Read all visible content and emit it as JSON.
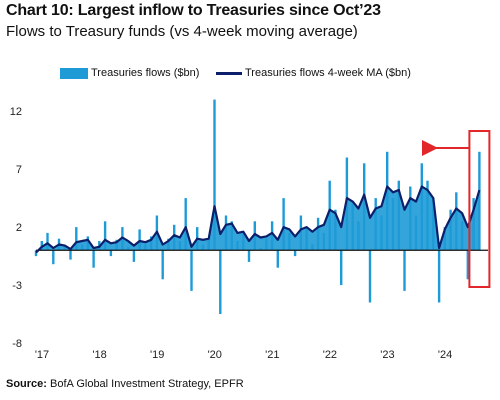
{
  "chart_data": {
    "type": "bar",
    "title": "Chart 10: Largest inflow to Treasuries since Oct’23",
    "subtitle": "Flows to Treasury funds (vs 4-week moving average)",
    "source_label": "Source:",
    "source_text": " BofA Global Investment Strategy, EPFR",
    "xlabel": "",
    "ylabel": "",
    "ylim": [
      -8,
      14
    ],
    "xlim": [
      2017.0,
      2024.85
    ],
    "yticks": [
      12,
      7,
      2,
      -3,
      -8
    ],
    "xticks": [
      {
        "label": "'17",
        "value": 2017.0
      },
      {
        "label": "'18",
        "value": 2018.0
      },
      {
        "label": "'19",
        "value": 2019.0
      },
      {
        "label": "'20",
        "value": 2020.0
      },
      {
        "label": "'21",
        "value": 2021.0
      },
      {
        "label": "'22",
        "value": 2022.0
      },
      {
        "label": "'23",
        "value": 2023.0
      },
      {
        "label": "'24",
        "value": 2024.0
      }
    ],
    "grid": false,
    "legend_placement": "top-left",
    "colors": {
      "bars": "#1e9bd7",
      "ma_line": "#0b1f6b",
      "highlight": "#e3262a"
    },
    "series": [
      {
        "name": "Treasuries flows ($bn)",
        "kind": "bar",
        "x": [
          2017.0,
          2017.1,
          2017.2,
          2017.3,
          2017.4,
          2017.5,
          2017.6,
          2017.7,
          2017.8,
          2017.9,
          2018.0,
          2018.1,
          2018.2,
          2018.3,
          2018.4,
          2018.5,
          2018.6,
          2018.7,
          2018.8,
          2018.9,
          2019.0,
          2019.1,
          2019.2,
          2019.3,
          2019.4,
          2019.5,
          2019.6,
          2019.7,
          2019.8,
          2019.9,
          2020.0,
          2020.1,
          2020.2,
          2020.3,
          2020.4,
          2020.5,
          2020.6,
          2020.7,
          2020.8,
          2020.9,
          2021.0,
          2021.1,
          2021.2,
          2021.3,
          2021.4,
          2021.5,
          2021.6,
          2021.7,
          2021.8,
          2021.9,
          2022.0,
          2022.1,
          2022.2,
          2022.3,
          2022.4,
          2022.5,
          2022.6,
          2022.7,
          2022.8,
          2022.9,
          2023.0,
          2023.1,
          2023.2,
          2023.3,
          2023.4,
          2023.5,
          2023.6,
          2023.7,
          2023.8,
          2023.9,
          2024.0,
          2024.1,
          2024.2,
          2024.3,
          2024.4,
          2024.5,
          2024.6,
          2024.7
        ],
        "values": [
          -0.5,
          0.8,
          1.5,
          -1.2,
          1.0,
          0.3,
          -0.8,
          2.0,
          0.5,
          1.2,
          -1.5,
          0.8,
          2.5,
          -0.5,
          0.9,
          2.0,
          0.3,
          -1.0,
          1.8,
          0.5,
          1.2,
          3.0,
          -2.5,
          1.0,
          2.2,
          0.8,
          4.5,
          -3.5,
          2.0,
          0.5,
          1.0,
          13.0,
          -5.5,
          3.0,
          2.5,
          0.8,
          1.5,
          -1.0,
          2.5,
          0.2,
          1.0,
          2.5,
          -1.5,
          4.5,
          1.5,
          -0.5,
          3.0,
          2.0,
          0.5,
          2.8,
          1.5,
          6.0,
          3.5,
          -3.0,
          8.0,
          4.0,
          2.5,
          7.5,
          -4.5,
          4.5,
          3.0,
          8.5,
          4.5,
          6.0,
          -3.5,
          5.5,
          3.0,
          7.5,
          6.0,
          4.5,
          -4.5,
          2.0,
          3.5,
          5.0,
          2.5,
          -2.5,
          4.5,
          8.5
        ]
      },
      {
        "name": "Treasuries flows 4-week MA ($bn)",
        "kind": "line",
        "x": [
          2017.0,
          2017.1,
          2017.2,
          2017.3,
          2017.4,
          2017.5,
          2017.6,
          2017.7,
          2017.8,
          2017.9,
          2018.0,
          2018.1,
          2018.2,
          2018.3,
          2018.4,
          2018.5,
          2018.6,
          2018.7,
          2018.8,
          2018.9,
          2019.0,
          2019.1,
          2019.2,
          2019.3,
          2019.4,
          2019.5,
          2019.6,
          2019.7,
          2019.8,
          2019.9,
          2020.0,
          2020.1,
          2020.2,
          2020.3,
          2020.4,
          2020.5,
          2020.6,
          2020.7,
          2020.8,
          2020.9,
          2021.0,
          2021.1,
          2021.2,
          2021.3,
          2021.4,
          2021.5,
          2021.6,
          2021.7,
          2021.8,
          2021.9,
          2022.0,
          2022.1,
          2022.2,
          2022.3,
          2022.4,
          2022.5,
          2022.6,
          2022.7,
          2022.8,
          2022.9,
          2023.0,
          2023.1,
          2023.2,
          2023.3,
          2023.4,
          2023.5,
          2023.6,
          2023.7,
          2023.8,
          2023.9,
          2024.0,
          2024.1,
          2024.2,
          2024.3,
          2024.4,
          2024.5,
          2024.6,
          2024.7
        ],
        "values": [
          -0.2,
          0.3,
          0.6,
          0.2,
          0.5,
          0.4,
          0.1,
          0.7,
          0.8,
          0.9,
          0.2,
          0.3,
          0.9,
          0.6,
          0.7,
          1.1,
          0.8,
          0.4,
          0.8,
          0.7,
          0.9,
          1.6,
          0.5,
          0.8,
          1.3,
          1.1,
          2.0,
          0.3,
          1.0,
          0.9,
          1.0,
          3.8,
          1.4,
          2.2,
          2.3,
          1.5,
          1.6,
          0.8,
          1.4,
          1.1,
          1.2,
          1.5,
          0.9,
          2.0,
          1.8,
          1.2,
          1.8,
          2.0,
          1.6,
          2.0,
          2.2,
          3.5,
          3.2,
          2.0,
          4.5,
          4.2,
          3.6,
          4.8,
          2.8,
          3.6,
          3.8,
          5.5,
          5.0,
          5.2,
          3.5,
          4.5,
          4.2,
          5.5,
          5.2,
          4.5,
          0.2,
          1.8,
          2.8,
          3.6,
          3.2,
          2.0,
          3.5,
          5.2
        ]
      }
    ],
    "annotation": {
      "type": "highlight-box-with-arrow",
      "target_x": 2024.7
    }
  }
}
